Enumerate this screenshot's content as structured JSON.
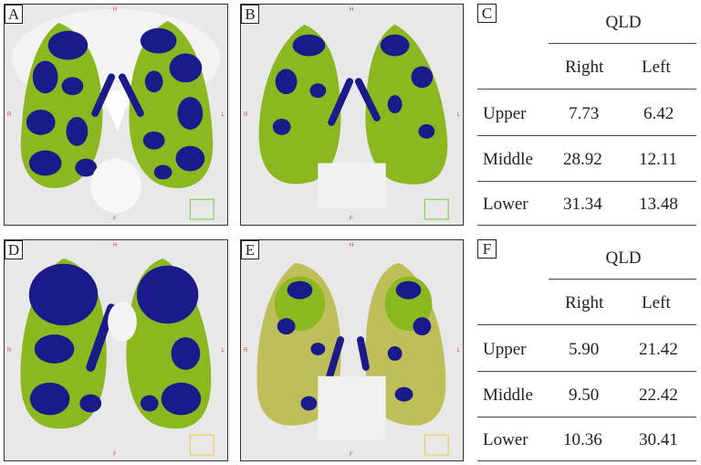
{
  "colors": {
    "emphysema": "#1a1a8a",
    "low_attenuation": "#8bb81f",
    "normal_lung": "#bfbf5a",
    "background_ct": "#e8e8e8",
    "orientation_marker": "#d84a2f"
  },
  "orientation": {
    "top": "H",
    "left": "R",
    "right": "L",
    "bottom": "F"
  },
  "image_panels": [
    {
      "label": "A"
    },
    {
      "label": "B"
    },
    {
      "label": "D"
    },
    {
      "label": "E"
    }
  ],
  "tables": [
    {
      "label": "C",
      "title": "QLD",
      "columns": [
        "Right",
        "Left"
      ],
      "rows": [
        {
          "region": "Upper",
          "right": "7.73",
          "left": "6.42"
        },
        {
          "region": "Middle",
          "right": "28.92",
          "left": "12.11"
        },
        {
          "region": "Lower",
          "right": "31.34",
          "left": "13.48"
        }
      ]
    },
    {
      "label": "F",
      "title": "QLD",
      "columns": [
        "Right",
        "Left"
      ],
      "rows": [
        {
          "region": "Upper",
          "right": "5.90",
          "left": "21.42"
        },
        {
          "region": "Middle",
          "right": "9.50",
          "left": "22.42"
        },
        {
          "region": "Lower",
          "right": "10.36",
          "left": "30.41"
        }
      ]
    }
  ]
}
